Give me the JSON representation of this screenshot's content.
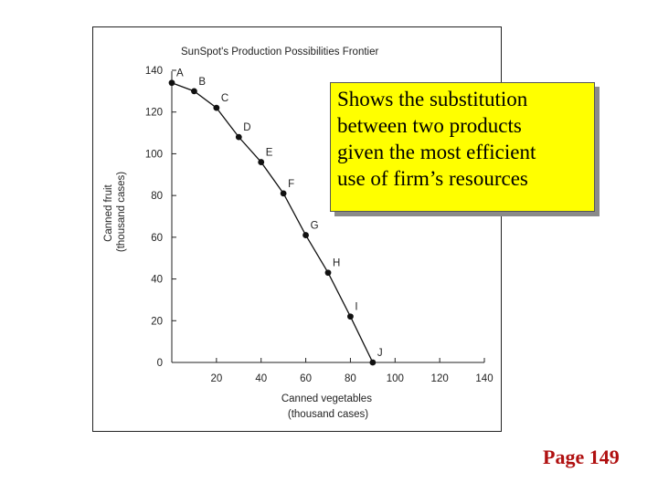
{
  "chart_data": {
    "type": "line",
    "title": "SunSpot's Production Possibilities Frontier",
    "xlabel": [
      "Canned vegetables",
      "(thousand cases)"
    ],
    "ylabel": [
      "Canned fruit",
      "(thousand cases)"
    ],
    "xlim": [
      0,
      140
    ],
    "ylim": [
      0,
      140
    ],
    "x_ticks": [
      20,
      40,
      60,
      80,
      100,
      120,
      140
    ],
    "y_ticks": [
      0,
      20,
      40,
      60,
      80,
      100,
      120,
      140
    ],
    "grid": false,
    "points": [
      {
        "label": "A",
        "x": 0,
        "y": 134
      },
      {
        "label": "B",
        "x": 10,
        "y": 130
      },
      {
        "label": "C",
        "x": 20,
        "y": 122
      },
      {
        "label": "D",
        "x": 30,
        "y": 108
      },
      {
        "label": "E",
        "x": 40,
        "y": 96
      },
      {
        "label": "F",
        "x": 50,
        "y": 81
      },
      {
        "label": "G",
        "x": 60,
        "y": 61
      },
      {
        "label": "H",
        "x": 70,
        "y": 43
      },
      {
        "label": "I",
        "x": 80,
        "y": 22
      },
      {
        "label": "J",
        "x": 90,
        "y": 0
      }
    ]
  },
  "callout": {
    "lines": [
      "Shows the substitution",
      "between two products",
      "given the most efficient",
      "use of firm’s resources"
    ],
    "background": "#ffff00"
  },
  "page_reference": "Page 149",
  "colors": {
    "page_reference": "#b01010",
    "line": "#111111"
  }
}
